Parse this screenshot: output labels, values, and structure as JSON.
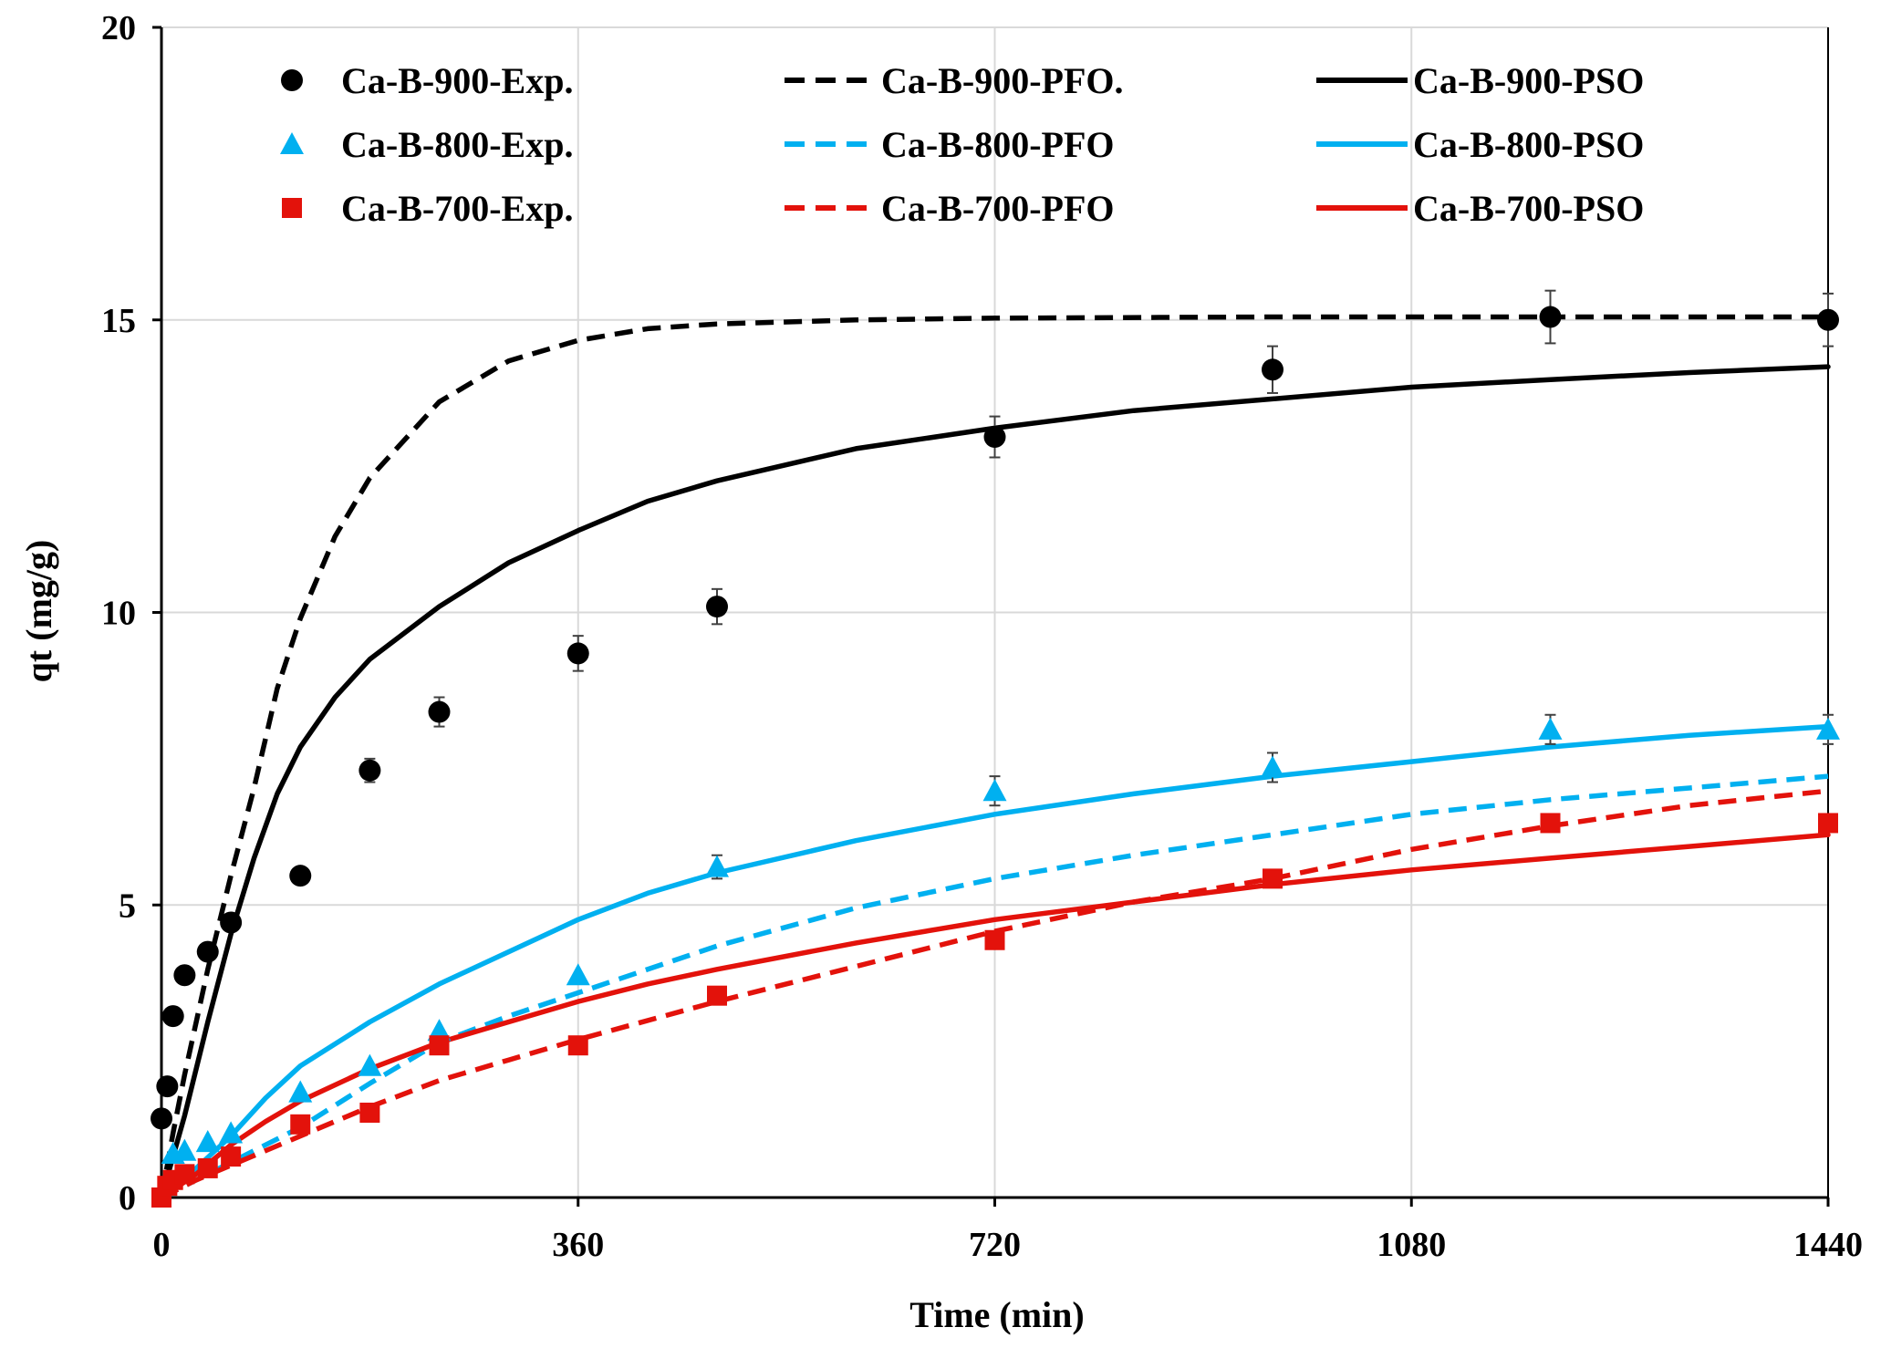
{
  "chart_data": {
    "type": "scatter",
    "title": "",
    "xlabel": "Time (min)",
    "ylabel": "qt (mg/g)",
    "xlim": [
      0,
      1440
    ],
    "ylim": [
      0,
      20
    ],
    "xticks": [
      0,
      360,
      720,
      1080,
      1440
    ],
    "yticks": [
      0,
      5,
      10,
      15,
      20
    ],
    "grid": true,
    "legend_position": "top",
    "series": [
      {
        "name": "Ca-B-900-Exp.",
        "kind": "points",
        "marker": "circle",
        "color": "#000000",
        "x": [
          0,
          5,
          10,
          20,
          40,
          60,
          120,
          180,
          240,
          360,
          480,
          720,
          960,
          1200,
          1440
        ],
        "y": [
          1.35,
          1.9,
          3.1,
          3.8,
          4.2,
          4.7,
          5.5,
          7.3,
          8.3,
          9.3,
          10.1,
          13.0,
          14.15,
          15.05,
          15.0
        ],
        "err": [
          0,
          0,
          0,
          0,
          0,
          0,
          0,
          0.2,
          0.25,
          0.3,
          0.3,
          0.35,
          0.4,
          0.45,
          0.45
        ]
      },
      {
        "name": "Ca-B-800-Exp.",
        "kind": "points",
        "marker": "triangle",
        "color": "#00B0F0",
        "x": [
          10,
          20,
          40,
          60,
          120,
          180,
          240,
          360,
          480,
          720,
          960,
          1200,
          1440
        ],
        "y": [
          0.75,
          0.8,
          0.95,
          1.1,
          1.8,
          2.25,
          2.85,
          3.8,
          5.65,
          6.95,
          7.35,
          8.0,
          8.0
        ],
        "err": [
          0,
          0,
          0,
          0,
          0,
          0,
          0,
          0,
          0.2,
          0.25,
          0.25,
          0.25,
          0.25
        ]
      },
      {
        "name": "Ca-B-700-Exp.",
        "kind": "points",
        "marker": "square",
        "color": "#E3120B",
        "x": [
          0,
          5,
          10,
          20,
          40,
          60,
          120,
          180,
          240,
          360,
          480,
          720,
          960,
          1200,
          1440
        ],
        "y": [
          0.0,
          0.2,
          0.3,
          0.4,
          0.5,
          0.7,
          1.25,
          1.45,
          2.6,
          2.6,
          3.45,
          4.4,
          5.45,
          6.4,
          6.4
        ],
        "err": [
          0,
          0,
          0,
          0,
          0,
          0,
          0,
          0,
          0,
          0,
          0,
          0,
          0,
          0,
          0
        ]
      },
      {
        "name": "Ca-B-900-PFO.",
        "kind": "line",
        "dash": true,
        "color": "#000000",
        "x": [
          0,
          10,
          20,
          40,
          60,
          80,
          100,
          120,
          150,
          180,
          240,
          300,
          360,
          420,
          480,
          600,
          720,
          960,
          1200,
          1440
        ],
        "y": [
          0,
          1.1,
          2.1,
          3.9,
          5.5,
          7.0,
          8.7,
          9.9,
          11.3,
          12.3,
          13.6,
          14.3,
          14.65,
          14.85,
          14.93,
          15.0,
          15.03,
          15.05,
          15.05,
          15.05
        ]
      },
      {
        "name": "Ca-B-800-PFO",
        "kind": "line",
        "dash": true,
        "color": "#00B0F0",
        "x": [
          0,
          30,
          60,
          120,
          180,
          240,
          300,
          360,
          480,
          600,
          720,
          840,
          960,
          1080,
          1200,
          1320,
          1440
        ],
        "y": [
          0,
          0.3,
          0.6,
          1.2,
          1.95,
          2.65,
          3.1,
          3.5,
          4.3,
          4.95,
          5.45,
          5.85,
          6.2,
          6.55,
          6.8,
          7.0,
          7.2
        ]
      },
      {
        "name": "Ca-B-700-PFO",
        "kind": "line",
        "dash": true,
        "color": "#E3120B",
        "x": [
          0,
          30,
          60,
          120,
          180,
          240,
          300,
          360,
          480,
          600,
          720,
          840,
          960,
          1080,
          1200,
          1320,
          1440
        ],
        "y": [
          0,
          0.3,
          0.55,
          1.05,
          1.55,
          2.0,
          2.35,
          2.7,
          3.35,
          3.95,
          4.55,
          5.05,
          5.45,
          5.95,
          6.35,
          6.7,
          6.95
        ]
      },
      {
        "name": "Ca-B-900-PSO",
        "kind": "line",
        "dash": false,
        "color": "#000000",
        "x": [
          0,
          10,
          20,
          40,
          60,
          80,
          100,
          120,
          150,
          180,
          240,
          300,
          360,
          420,
          480,
          600,
          720,
          840,
          960,
          1080,
          1200,
          1320,
          1440
        ],
        "y": [
          0,
          0.7,
          1.4,
          3.0,
          4.5,
          5.8,
          6.9,
          7.7,
          8.55,
          9.2,
          10.1,
          10.85,
          11.4,
          11.9,
          12.25,
          12.8,
          13.15,
          13.45,
          13.65,
          13.85,
          13.98,
          14.1,
          14.2
        ]
      },
      {
        "name": "Ca-B-800-PSO",
        "kind": "line",
        "dash": false,
        "color": "#00B0F0",
        "x": [
          0,
          30,
          60,
          90,
          120,
          180,
          240,
          300,
          360,
          420,
          480,
          600,
          720,
          840,
          960,
          1080,
          1200,
          1320,
          1440
        ],
        "y": [
          0,
          0.5,
          1.05,
          1.7,
          2.25,
          3.0,
          3.65,
          4.2,
          4.75,
          5.2,
          5.55,
          6.1,
          6.55,
          6.9,
          7.2,
          7.45,
          7.7,
          7.9,
          8.05
        ]
      },
      {
        "name": "Ca-B-700-PSO",
        "kind": "line",
        "dash": false,
        "color": "#E3120B",
        "x": [
          0,
          30,
          60,
          90,
          120,
          180,
          240,
          300,
          360,
          420,
          480,
          600,
          720,
          840,
          960,
          1080,
          1200,
          1320,
          1440
        ],
        "y": [
          0,
          0.4,
          0.9,
          1.3,
          1.65,
          2.2,
          2.65,
          3.0,
          3.35,
          3.65,
          3.9,
          4.35,
          4.75,
          5.05,
          5.35,
          5.6,
          5.8,
          6.0,
          6.2
        ]
      }
    ],
    "legend": [
      {
        "label": "Ca-B-900-Exp.",
        "series": 0
      },
      {
        "label": "Ca-B-900-PFO.",
        "series": 3
      },
      {
        "label": "Ca-B-900-PSO",
        "series": 6
      },
      {
        "label": "Ca-B-800-Exp.",
        "series": 1
      },
      {
        "label": "Ca-B-800-PFO",
        "series": 4
      },
      {
        "label": "Ca-B-800-PSO",
        "series": 7
      },
      {
        "label": "Ca-B-700-Exp.",
        "series": 2
      },
      {
        "label": "Ca-B-700-PFO",
        "series": 5
      },
      {
        "label": "Ca-B-700-PSO",
        "series": 8
      }
    ]
  }
}
